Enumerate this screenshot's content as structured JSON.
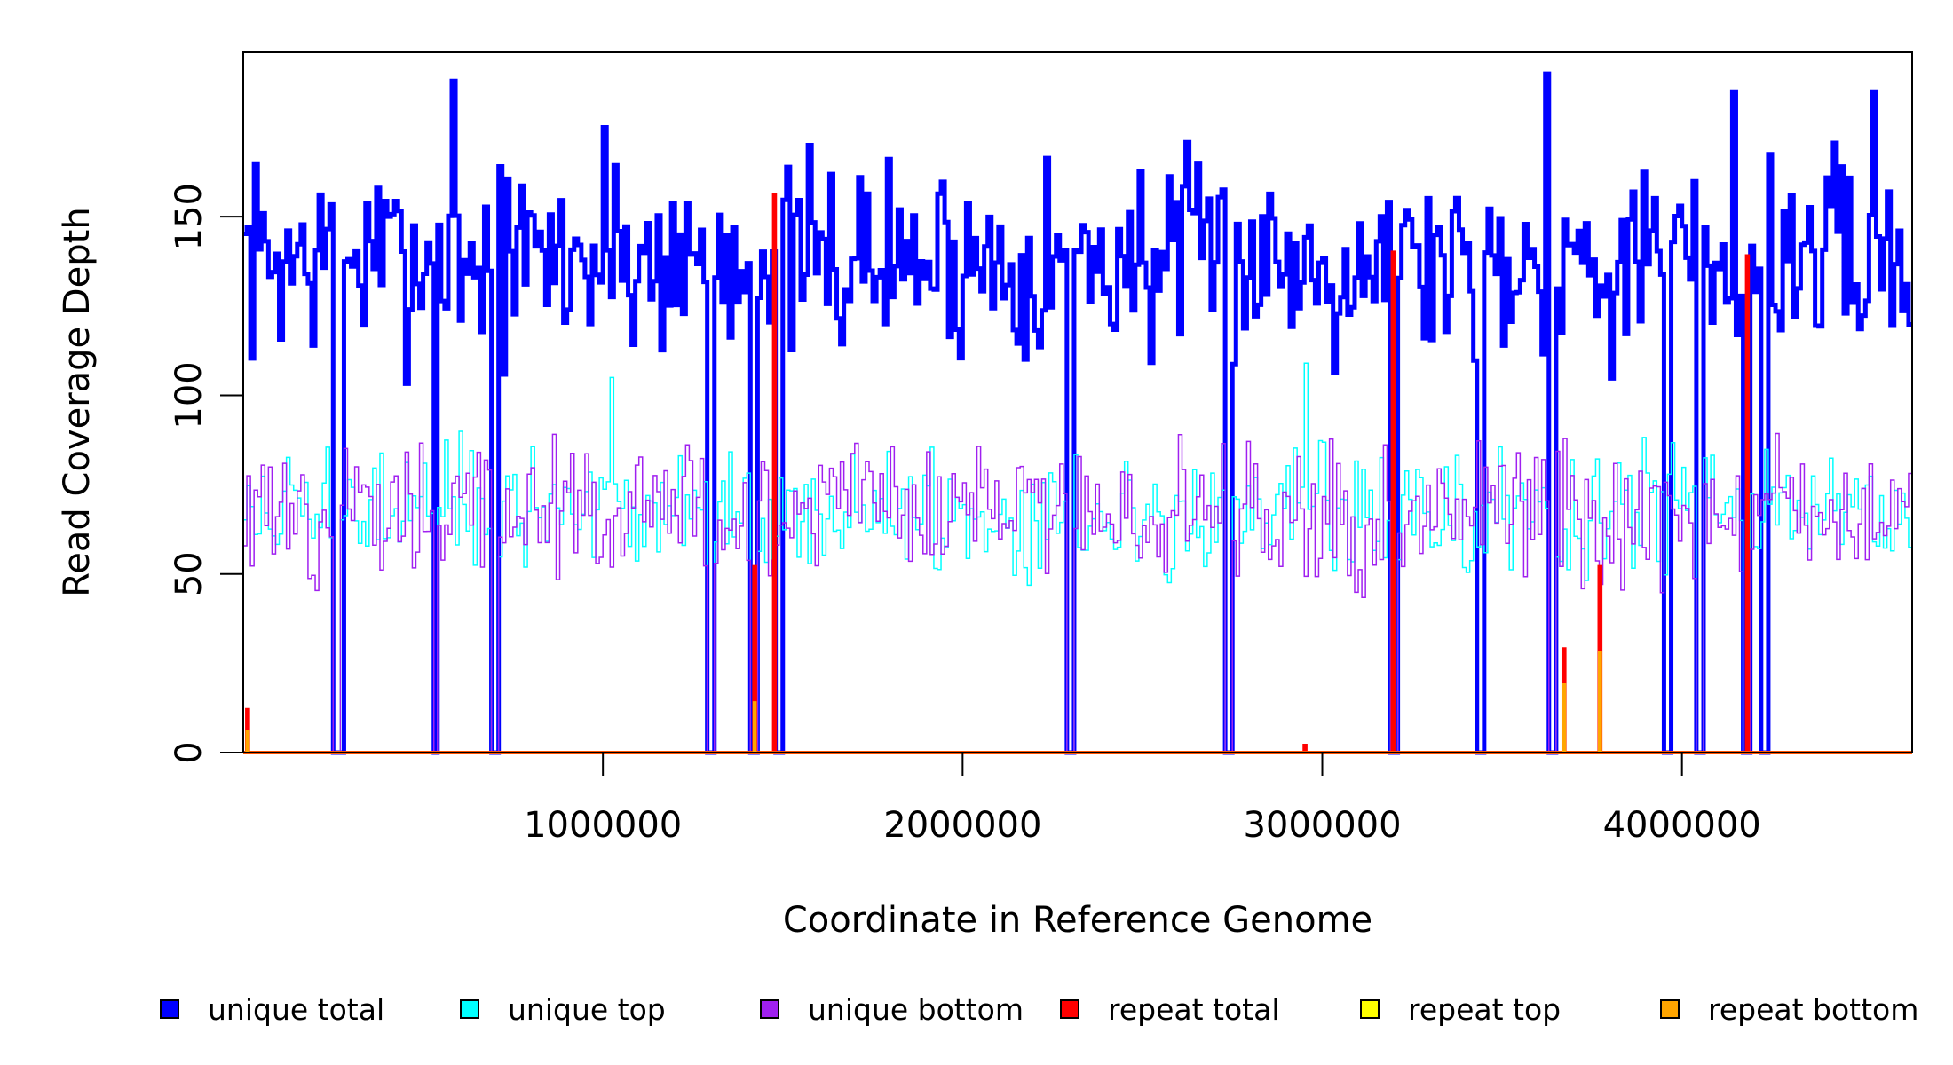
{
  "chart_data": {
    "type": "line",
    "xlabel": "Coordinate in Reference Genome",
    "ylabel": "Read Coverage Depth",
    "xlim": [
      0,
      4640000
    ],
    "ylim": [
      0,
      196
    ],
    "x_ticks": [
      1000000,
      2000000,
      3000000,
      4000000
    ],
    "x_tick_labels": [
      "1000000",
      "2000000",
      "3000000",
      "4000000"
    ],
    "y_ticks": [
      0,
      50,
      100,
      150
    ],
    "y_tick_labels": [
      "0",
      "50",
      "100",
      "150"
    ],
    "bin_width": 10000,
    "grid": false,
    "legend_position": "bottom",
    "series": [
      {
        "name": "unique total",
        "color": "#0000FF",
        "baseline": 138,
        "spread": 17,
        "dropouts": [
          [
            250000,
            265000
          ],
          [
            265000,
            280000
          ],
          [
            525000,
            540000
          ],
          [
            690000,
            705000
          ],
          [
            1290000,
            1305000
          ],
          [
            1410000,
            1430000
          ],
          [
            1480000,
            1495000
          ],
          [
            2290000,
            2305000
          ],
          [
            2730000,
            2745000
          ],
          [
            3190000,
            3205000
          ],
          [
            3430000,
            3445000
          ],
          [
            3630000,
            3645000
          ],
          [
            3950000,
            3965000
          ],
          [
            4040000,
            4055000
          ],
          [
            4170000,
            4185000
          ],
          [
            4220000,
            4235000
          ]
        ],
        "peaks": [
          [
            580000,
            188
          ],
          [
            1000000,
            175
          ],
          [
            3620000,
            190
          ],
          [
            4140000,
            185
          ],
          [
            4530000,
            185
          ]
        ]
      },
      {
        "name": "unique top",
        "color": "#00FFFF",
        "baseline": 67,
        "spread": 11,
        "dropouts": [
          [
            250000,
            265000
          ],
          [
            525000,
            540000
          ],
          [
            690000,
            705000
          ],
          [
            1290000,
            1305000
          ],
          [
            1410000,
            1430000
          ],
          [
            2290000,
            2305000
          ],
          [
            2730000,
            2745000
          ],
          [
            3190000,
            3205000
          ],
          [
            3630000,
            3645000
          ],
          [
            4040000,
            4055000
          ],
          [
            4170000,
            4185000
          ]
        ],
        "peaks": [
          [
            1020000,
            105
          ],
          [
            2950000,
            109
          ]
        ]
      },
      {
        "name": "unique bottom",
        "color": "#A020F0",
        "baseline": 67,
        "spread": 12,
        "dropouts": [
          [
            250000,
            265000
          ],
          [
            525000,
            540000
          ],
          [
            690000,
            705000
          ],
          [
            1290000,
            1305000
          ],
          [
            1410000,
            1430000
          ],
          [
            2290000,
            2305000
          ],
          [
            2730000,
            2745000
          ],
          [
            3190000,
            3205000
          ],
          [
            3630000,
            3645000
          ],
          [
            4040000,
            4055000
          ],
          [
            4170000,
            4185000
          ]
        ],
        "peaks": []
      },
      {
        "name": "repeat total",
        "color": "#FF0000",
        "spikes": [
          [
            10000,
            12
          ],
          [
            1420000,
            52
          ],
          [
            1475000,
            156
          ],
          [
            2950000,
            2
          ],
          [
            3670000,
            29
          ],
          [
            3770000,
            52
          ],
          [
            3195000,
            140
          ],
          [
            4180000,
            139
          ]
        ]
      },
      {
        "name": "repeat top",
        "color": "#FFFF00",
        "spikes": [
          [
            10000,
            6
          ],
          [
            3670000,
            19
          ],
          [
            3770000,
            28
          ]
        ]
      },
      {
        "name": "repeat bottom",
        "color": "#FFA500",
        "spikes": [
          [
            10000,
            6
          ],
          [
            1420000,
            14
          ],
          [
            3670000,
            19
          ],
          [
            3770000,
            28
          ]
        ]
      }
    ]
  },
  "legend": {
    "items": [
      {
        "label": "unique total",
        "color": "#0000FF"
      },
      {
        "label": "unique top",
        "color": "#00FFFF"
      },
      {
        "label": "unique bottom",
        "color": "#A020F0"
      },
      {
        "label": "repeat total",
        "color": "#FF0000"
      },
      {
        "label": "repeat top",
        "color": "#FFFF00"
      },
      {
        "label": "repeat bottom",
        "color": "#FFA500"
      }
    ]
  }
}
